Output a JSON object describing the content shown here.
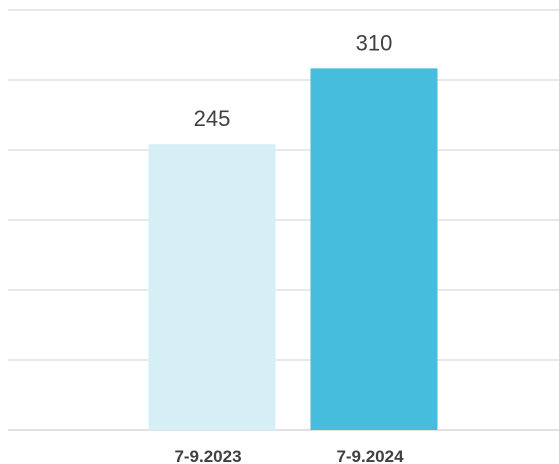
{
  "chart_data": {
    "type": "bar",
    "categories": [
      "7-9.2023",
      "7-9.2024"
    ],
    "values": [
      245,
      310
    ],
    "data_labels": [
      "245",
      "310"
    ],
    "colors": [
      "#d6eff6",
      "#47bddd"
    ],
    "ylim": [
      0,
      360
    ],
    "gridline_step": 60,
    "grid": true,
    "legend": "none",
    "title": "",
    "xlabel": "",
    "ylabel": ""
  }
}
